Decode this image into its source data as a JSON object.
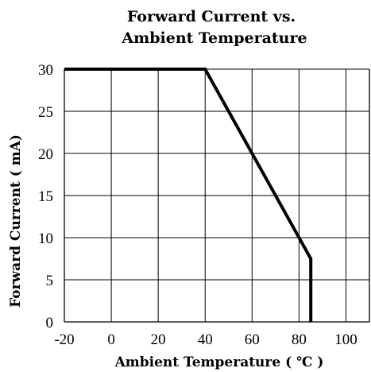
{
  "chart_data": {
    "type": "line",
    "title": [
      "Forward Current vs.",
      "Ambient Temperature"
    ],
    "xlabel": "Ambient Temperature ( ℃ )",
    "ylabel": "Forward Current ( mA)",
    "xlim": [
      -20,
      110
    ],
    "ylim": [
      0,
      30
    ],
    "xticks": [
      -20,
      0,
      20,
      40,
      60,
      80,
      100
    ],
    "yticks": [
      0,
      5,
      10,
      15,
      20,
      25,
      30
    ],
    "grid": true,
    "series": [
      {
        "x": [
          -20,
          40,
          85,
          85
        ],
        "y": [
          30,
          30,
          7.5,
          0
        ]
      }
    ],
    "colors": {
      "line": "#000000",
      "grid": "#000000",
      "background": "#ffffff"
    }
  }
}
